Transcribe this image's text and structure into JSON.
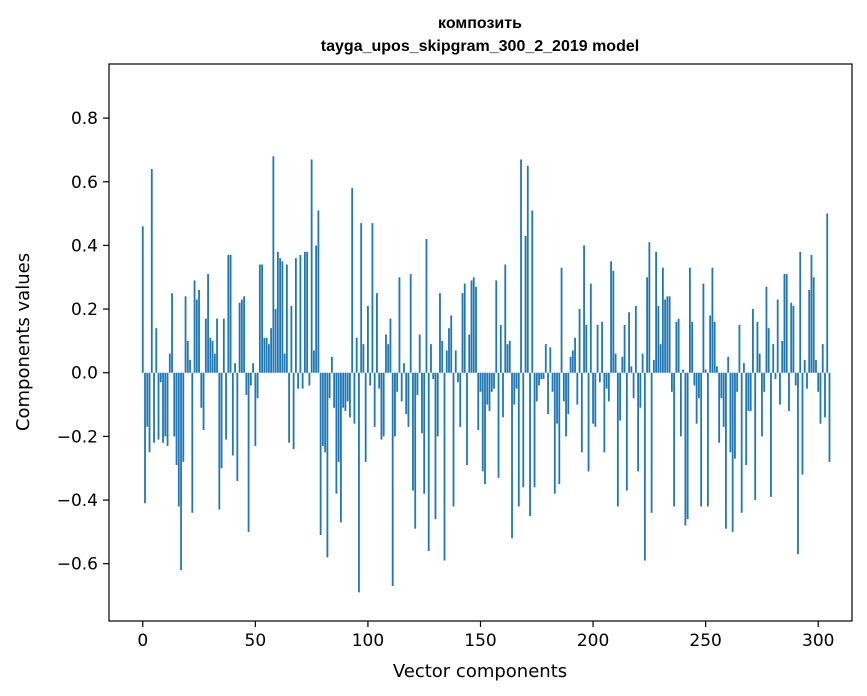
{
  "chart_data": {
    "type": "bar",
    "title": "композить",
    "subtitle": "tayga_upos_skipgram_300_2_2019 model",
    "xlabel": "Vector components",
    "ylabel": "Components values",
    "xlim": [
      -15,
      315
    ],
    "ylim": [
      -0.78,
      0.97
    ],
    "xticks": [
      0,
      50,
      100,
      150,
      200,
      250,
      300
    ],
    "yticks": [
      -0.6,
      -0.4,
      -0.2,
      0.0,
      0.2,
      0.4,
      0.6,
      0.8
    ],
    "ytick_labels": [
      "−0.6",
      "−0.4",
      "−0.2",
      "0.0",
      "0.2",
      "0.4",
      "0.6",
      "0.8"
    ],
    "bar_color": "#1f77b4",
    "values": [
      0.46,
      -0.41,
      -0.17,
      -0.25,
      0.64,
      -0.22,
      0.14,
      -0.21,
      -0.03,
      -0.22,
      -0.2,
      -0.23,
      0.06,
      0.25,
      -0.2,
      -0.29,
      -0.42,
      -0.62,
      -0.28,
      0.24,
      0.1,
      0.04,
      -0.44,
      0.29,
      0.23,
      0.26,
      -0.11,
      -0.18,
      0.17,
      0.31,
      0.11,
      0.1,
      0.06,
      0.17,
      -0.43,
      -0.3,
      0.17,
      -0.21,
      0.37,
      0.37,
      -0.26,
      0.03,
      -0.34,
      0.22,
      0.23,
      0.24,
      -0.07,
      -0.5,
      -0.04,
      0.03,
      -0.23,
      -0.08,
      0.34,
      0.34,
      0.11,
      0.11,
      0.09,
      0.14,
      0.68,
      0.2,
      0.38,
      0.36,
      0.35,
      0.06,
      0.34,
      -0.22,
      0.21,
      -0.24,
      0.36,
      -0.05,
      0.37,
      -0.05,
      0.38,
      0.38,
      -0.04,
      0.67,
      0.07,
      0.4,
      0.51,
      -0.51,
      -0.23,
      -0.25,
      -0.58,
      -0.08,
      0.05,
      -0.11,
      -0.38,
      -0.28,
      -0.47,
      -0.11,
      -0.12,
      -0.09,
      -0.14,
      0.58,
      -0.16,
      0.11,
      -0.69,
      0.47,
      0.09,
      -0.28,
      0.21,
      -0.04,
      0.47,
      -0.17,
      0.25,
      -0.05,
      -0.21,
      -0.2,
      0.12,
      0.09,
      0.17,
      -0.67,
      -0.2,
      -0.06,
      0.3,
      -0.09,
      0.03,
      -0.13,
      -0.17,
      0.31,
      -0.37,
      -0.49,
      -0.07,
      0.12,
      -0.19,
      -0.38,
      0.42,
      -0.56,
      0.09,
      -0.02,
      -0.46,
      -0.2,
      0.25,
      0.1,
      -0.59,
      0.07,
      0.14,
      0.18,
      -0.42,
      0.07,
      -0.03,
      -0.17,
      0.25,
      0.28,
      -0.29,
      0.12,
      0.29,
      0.3,
      0.27,
      -0.18,
      -0.06,
      -0.31,
      -0.35,
      -0.1,
      -0.12,
      -0.06,
      -0.05,
      0.29,
      -0.33,
      0.15,
      -0.14,
      0.34,
      0.09,
      0.1,
      -0.52,
      -0.1,
      -0.05,
      -0.42,
      0.67,
      -0.36,
      0.43,
      0.65,
      -0.45,
      0.51,
      -0.36,
      -0.09,
      -0.04,
      -0.02,
      -0.02,
      0.09,
      -0.13,
      0.08,
      -0.06,
      -0.38,
      -0.16,
      -0.35,
      0.33,
      -0.09,
      -0.2,
      -0.13,
      0.05,
      0.07,
      0.11,
      -0.1,
      0.2,
      -0.25,
      0.4,
      0.15,
      -0.31,
      0.28,
      -0.16,
      -0.17,
      0.15,
      -0.03,
      0.16,
      -0.25,
      -0.05,
      -0.09,
      0.35,
      0.32,
      0.06,
      -0.42,
      -0.15,
      0.05,
      0.15,
      -0.37,
      0.19,
      0.02,
      -0.08,
      0.21,
      -0.31,
      -0.11,
      0.06,
      -0.59,
      0.3,
      0.41,
      -0.44,
      0.04,
      0.38,
      0.21,
      0.09,
      0.33,
      0.23,
      0.24,
      0.24,
      -0.06,
      -0.42,
      0.16,
      0.17,
      -0.2,
      0.01,
      -0.48,
      -0.46,
      0.33,
      0.16,
      -0.04,
      -0.16,
      -0.08,
      -0.42,
      0.28,
      0.01,
      -0.42,
      0.18,
      0.33,
      0.16,
      0.02,
      -0.22,
      -0.08,
      -0.17,
      -0.49,
      0.05,
      -0.25,
      -0.5,
      -0.27,
      -0.06,
      0.15,
      -0.44,
      0.03,
      -0.29,
      -0.12,
      -0.12,
      0.2,
      -0.4,
      0.16,
      0.06,
      -0.2,
      -0.06,
      0.27,
      0.14,
      -0.39,
      0.09,
      -0.02,
      0.23,
      -0.1,
      0.1,
      0.31,
      0.31,
      -0.12,
      0.22,
      0.21,
      -0.04,
      -0.57,
      0.38,
      -0.32,
      0.04,
      -0.05,
      0.26,
      0.37,
      0.3,
      0.04,
      -0.06,
      -0.16,
      0.09,
      -0.14,
      0.5,
      -0.28
    ]
  }
}
